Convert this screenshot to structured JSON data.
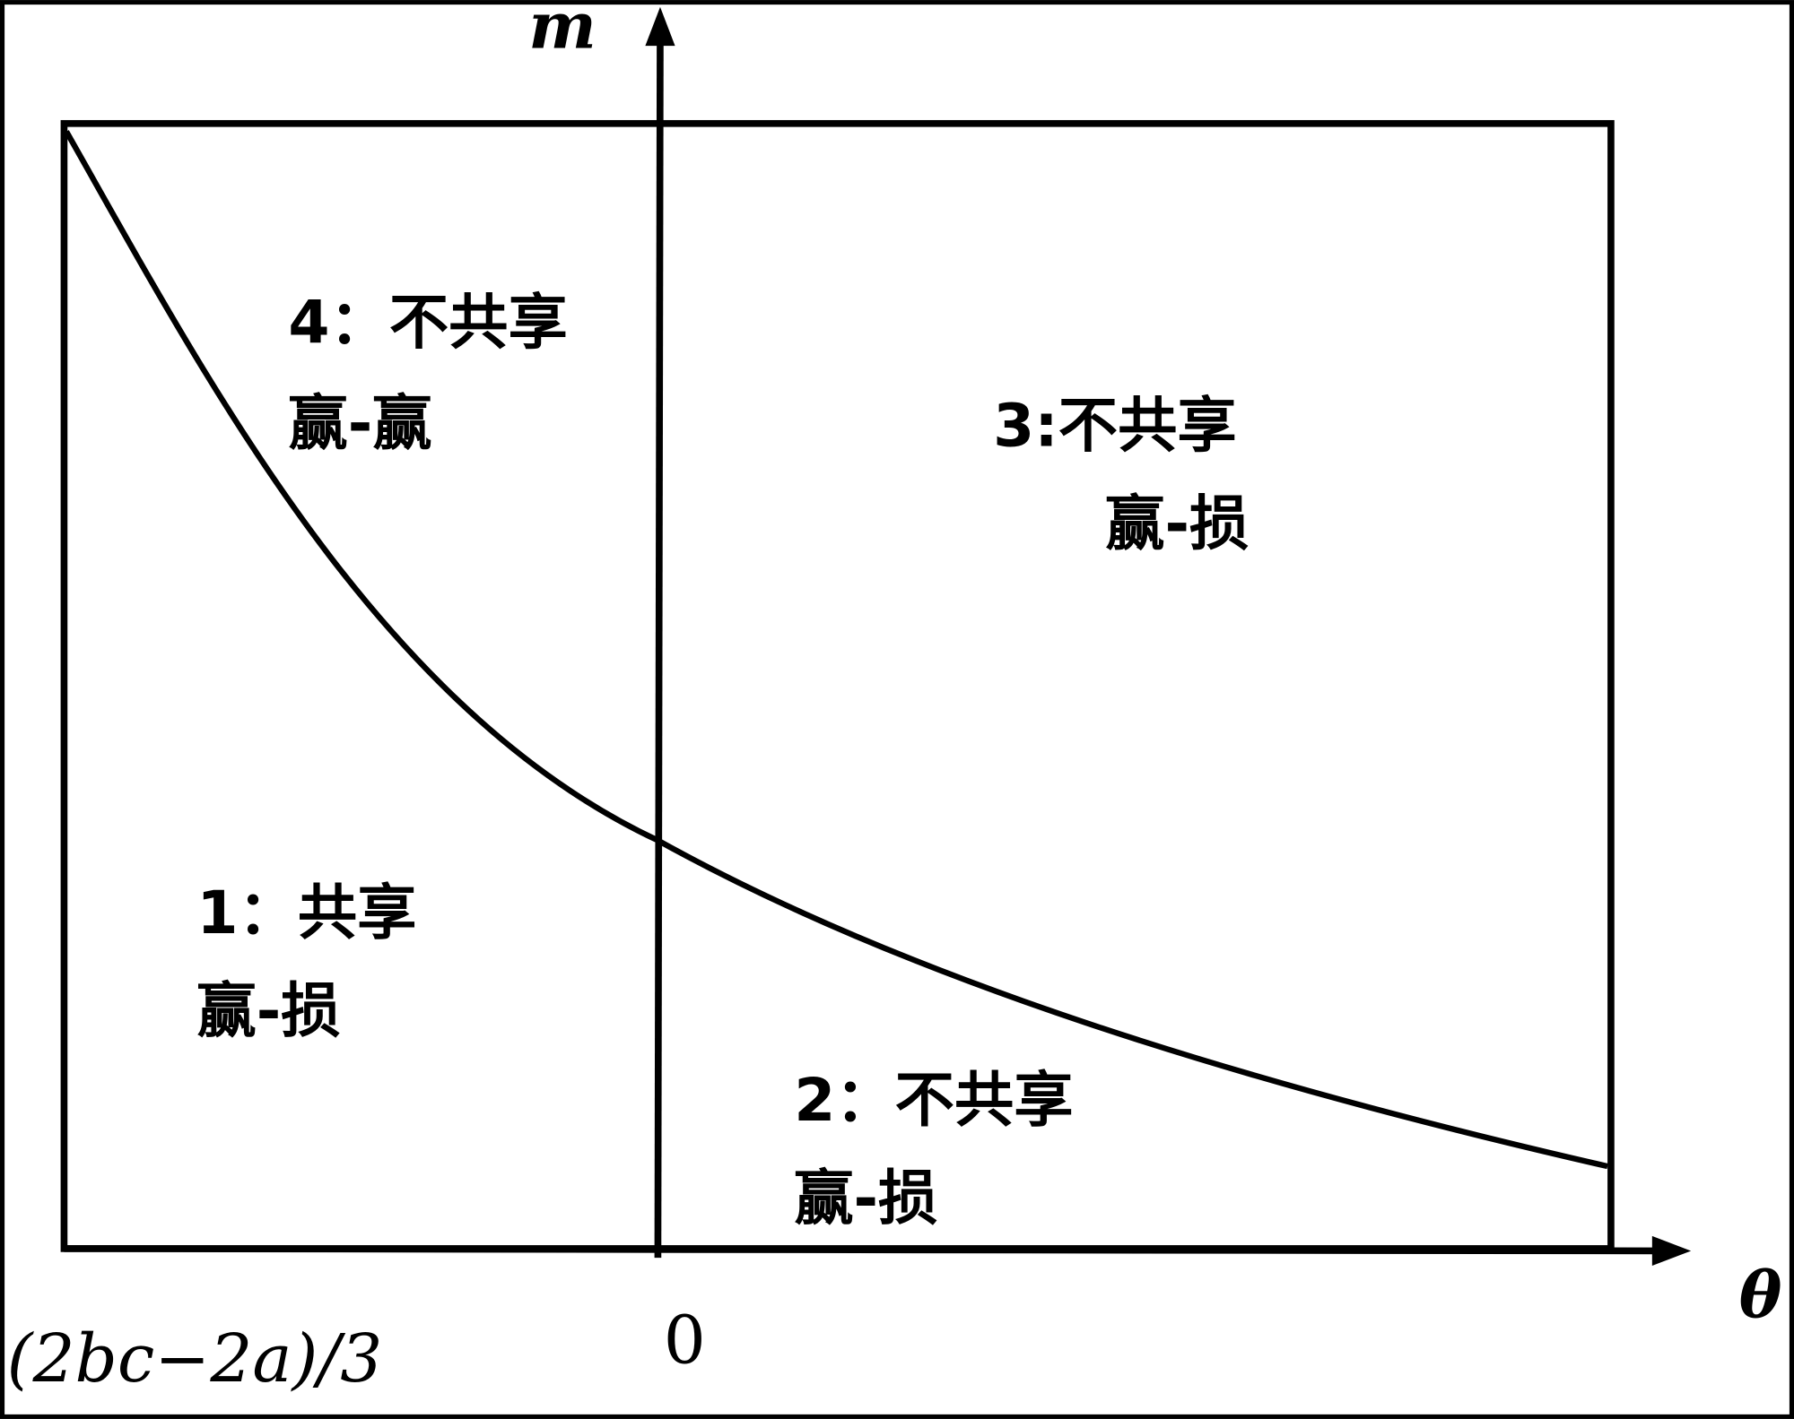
{
  "axes": {
    "y_label": "m",
    "x_label": "θ",
    "origin_label": "0",
    "left_label": "(2bc−2a)/3"
  },
  "regions": [
    {
      "label": "4：不共享",
      "outcome": "赢-赢"
    },
    {
      "label": "3:不共享",
      "outcome": "赢-损"
    },
    {
      "label": "1：共享",
      "outcome": "赢-损"
    },
    {
      "label": "2：不共享",
      "outcome": "赢-损"
    }
  ]
}
